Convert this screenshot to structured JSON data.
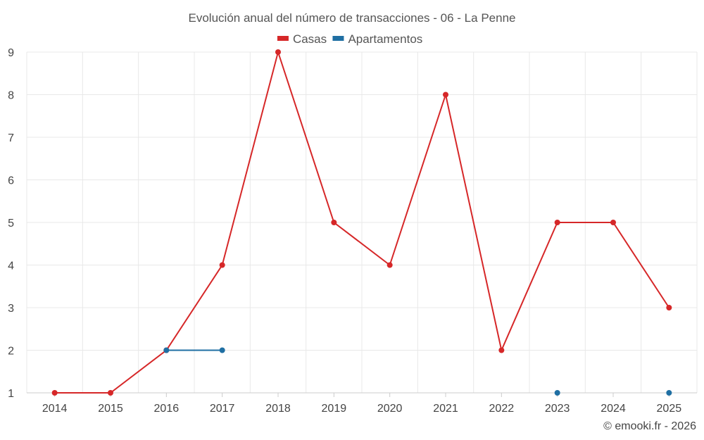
{
  "chart_data": {
    "type": "line",
    "title": "Evolución anual del número de transacciones - 06 - La Penne",
    "x": [
      "2014",
      "2015",
      "2016",
      "2017",
      "2018",
      "2019",
      "2020",
      "2021",
      "2022",
      "2023",
      "2024",
      "2025"
    ],
    "ylim": [
      1,
      9
    ],
    "yticks": [
      1,
      2,
      3,
      4,
      5,
      6,
      7,
      8,
      9
    ],
    "grid": true,
    "legend_position": "top-center",
    "series": [
      {
        "name": "Casas",
        "color": "#d62728",
        "values": [
          1,
          1,
          2,
          4,
          9,
          5,
          4,
          8,
          2,
          5,
          5,
          3
        ]
      },
      {
        "name": "Apartamentos",
        "color": "#1f6fa3",
        "values": [
          null,
          null,
          2,
          2,
          null,
          null,
          null,
          null,
          null,
          1,
          null,
          1
        ]
      }
    ]
  },
  "credit": "© emooki.fr - 2026"
}
